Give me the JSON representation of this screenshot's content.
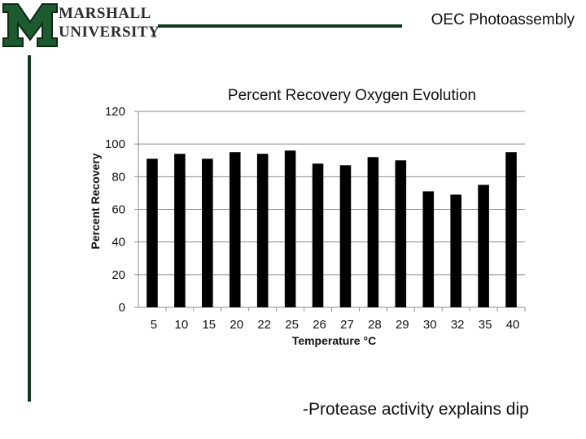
{
  "header": {
    "logo_line1": "MARSHALL",
    "logo_line2": "UNIVERSITY",
    "logo_reg": "®",
    "title": "OEC Photoassembly"
  },
  "colors": {
    "brand_green": "#0f3a1e",
    "bar": "#000000"
  },
  "chart_data": {
    "type": "bar",
    "title": "Percent Recovery Oxygen Evolution",
    "xlabel": "Temperature °C",
    "ylabel": "Percent Recovery",
    "categories": [
      "5",
      "10",
      "15",
      "20",
      "22",
      "25",
      "26",
      "27",
      "28",
      "29",
      "30",
      "32",
      "35",
      "40"
    ],
    "values": [
      91,
      94,
      91,
      95,
      94,
      96,
      88,
      87,
      92,
      90,
      71,
      69,
      75,
      95
    ],
    "ylim": [
      0,
      120
    ],
    "yticks": [
      0,
      20,
      40,
      60,
      80,
      100,
      120
    ],
    "grid": true
  },
  "footnote": "-Protease activity explains dip"
}
